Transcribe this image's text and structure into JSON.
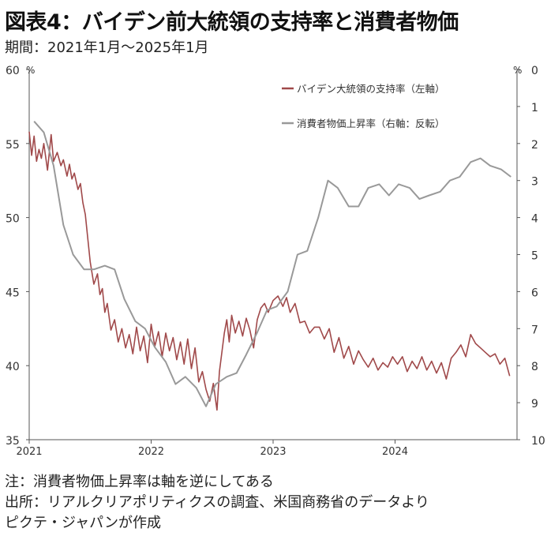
{
  "title": "図表4：バイデン前大統領の支持率と消費者物価",
  "subtitle": "期間：2021年1月～2025年1月",
  "notes": [
    "注：消費者物価上昇率は軸を逆にしてある",
    "出所：リアルクリアポリティクスの調査、米国商務省のデータより",
    "ピクテ・ジャパンが作成"
  ],
  "chart_data": {
    "type": "line",
    "left_axis": {
      "unit": "%",
      "min": 35,
      "max": 60,
      "ticks": [
        "35",
        "40",
        "45",
        "50",
        "55",
        "60"
      ]
    },
    "right_axis": {
      "unit": "%",
      "min": 0,
      "max": 10,
      "inverted": true,
      "ticks": [
        "0",
        "1",
        "2",
        "3",
        "4",
        "5",
        "6",
        "7",
        "8",
        "9",
        "10"
      ]
    },
    "x_axis": {
      "min": 2021.0,
      "max": 2025.0,
      "ticks": [
        "2021",
        "2022",
        "2023",
        "2024"
      ]
    },
    "grid": false,
    "legend_position": "top-right",
    "series": [
      {
        "name": "バイデン大統領の支持率（左軸）",
        "axis": "left",
        "color": "#a0494a",
        "x": [
          2021.0,
          2021.02,
          2021.04,
          2021.06,
          2021.08,
          2021.1,
          2021.12,
          2021.15,
          2021.18,
          2021.2,
          2021.23,
          2021.26,
          2021.28,
          2021.31,
          2021.33,
          2021.35,
          2021.37,
          2021.4,
          2021.42,
          2021.44,
          2021.46,
          2021.48,
          2021.5,
          2021.53,
          2021.56,
          2021.58,
          2021.6,
          2021.62,
          2021.64,
          2021.67,
          2021.7,
          2021.73,
          2021.76,
          2021.79,
          2021.82,
          2021.85,
          2021.88,
          2021.91,
          2021.94,
          2021.97,
          2022.0,
          2022.03,
          2022.06,
          2022.09,
          2022.12,
          2022.15,
          2022.18,
          2022.21,
          2022.24,
          2022.27,
          2022.3,
          2022.33,
          2022.36,
          2022.39,
          2022.42,
          2022.45,
          2022.48,
          2022.51,
          2022.54,
          2022.56,
          2022.58,
          2022.6,
          2022.62,
          2022.64,
          2022.66,
          2022.69,
          2022.72,
          2022.75,
          2022.78,
          2022.81,
          2022.84,
          2022.87,
          2022.9,
          2022.93,
          2022.96,
          2023.0,
          2023.04,
          2023.08,
          2023.11,
          2023.14,
          2023.18,
          2023.22,
          2023.26,
          2023.3,
          2023.34,
          2023.38,
          2023.42,
          2023.46,
          2023.5,
          2023.54,
          2023.58,
          2023.62,
          2023.66,
          2023.7,
          2023.74,
          2023.78,
          2023.82,
          2023.86,
          2023.9,
          2023.94,
          2023.98,
          2024.02,
          2024.06,
          2024.1,
          2024.14,
          2024.18,
          2024.22,
          2024.26,
          2024.3,
          2024.34,
          2024.38,
          2024.42,
          2024.46,
          2024.5,
          2024.54,
          2024.58,
          2024.62,
          2024.66,
          2024.7,
          2024.74,
          2024.78,
          2024.82,
          2024.86,
          2024.9,
          2024.94
        ],
        "values": [
          55.8,
          54.2,
          55.5,
          53.8,
          54.6,
          54.0,
          55.0,
          53.2,
          55.6,
          53.8,
          54.4,
          53.5,
          53.9,
          52.8,
          53.6,
          52.6,
          53.0,
          51.9,
          52.3,
          51.0,
          50.2,
          48.6,
          47.0,
          45.5,
          46.2,
          44.8,
          45.2,
          43.6,
          44.2,
          42.4,
          43.1,
          41.6,
          42.5,
          41.2,
          42.1,
          40.8,
          42.6,
          41.0,
          42.0,
          40.2,
          42.8,
          41.3,
          42.3,
          40.6,
          42.2,
          41.0,
          41.9,
          40.4,
          41.6,
          40.1,
          41.8,
          39.8,
          41.2,
          38.9,
          39.6,
          38.4,
          37.6,
          38.8,
          37.0,
          39.6,
          40.9,
          42.2,
          43.1,
          41.6,
          43.4,
          42.2,
          43.0,
          42.0,
          43.2,
          42.4,
          41.2,
          43.1,
          43.9,
          44.2,
          43.6,
          44.4,
          44.7,
          44.0,
          44.6,
          43.6,
          44.2,
          42.9,
          43.0,
          42.2,
          42.6,
          42.6,
          41.8,
          42.5,
          40.9,
          41.9,
          40.5,
          41.3,
          40.1,
          41.0,
          40.4,
          39.9,
          40.5,
          39.7,
          40.2,
          39.9,
          40.6,
          40.1,
          40.6,
          39.6,
          40.3,
          39.8,
          40.6,
          39.7,
          40.3,
          39.5,
          40.2,
          39.1,
          40.5,
          40.9,
          41.4,
          40.6,
          42.1,
          41.5,
          41.2,
          40.9,
          40.6,
          40.8,
          40.1,
          40.5,
          39.3
        ]
      },
      {
        "name": "消費者物価上昇率（右軸：反転）",
        "axis": "right",
        "color": "#999999",
        "x": [
          2021.04,
          2021.12,
          2021.2,
          2021.28,
          2021.36,
          2021.45,
          2021.53,
          2021.62,
          2021.7,
          2021.78,
          2021.87,
          2021.95,
          2022.03,
          2022.12,
          2022.2,
          2022.28,
          2022.37,
          2022.45,
          2022.53,
          2022.62,
          2022.7,
          2022.78,
          2022.87,
          2022.95,
          2023.03,
          2023.12,
          2023.2,
          2023.28,
          2023.37,
          2023.45,
          2023.53,
          2023.62,
          2023.7,
          2023.78,
          2023.87,
          2023.95,
          2024.03,
          2024.12,
          2024.2,
          2024.28,
          2024.37,
          2024.45,
          2024.53,
          2024.62,
          2024.7,
          2024.78,
          2024.87,
          2024.95
        ],
        "values": [
          1.4,
          1.7,
          2.6,
          4.2,
          5.0,
          5.4,
          5.4,
          5.3,
          5.4,
          6.2,
          6.8,
          7.0,
          7.5,
          7.9,
          8.5,
          8.3,
          8.6,
          9.1,
          8.5,
          8.3,
          8.2,
          7.7,
          7.1,
          6.5,
          6.4,
          6.0,
          5.0,
          4.9,
          4.0,
          3.0,
          3.2,
          3.7,
          3.7,
          3.2,
          3.1,
          3.4,
          3.1,
          3.2,
          3.5,
          3.4,
          3.3,
          3.0,
          2.9,
          2.5,
          2.4,
          2.6,
          2.7,
          2.9
        ]
      }
    ]
  }
}
